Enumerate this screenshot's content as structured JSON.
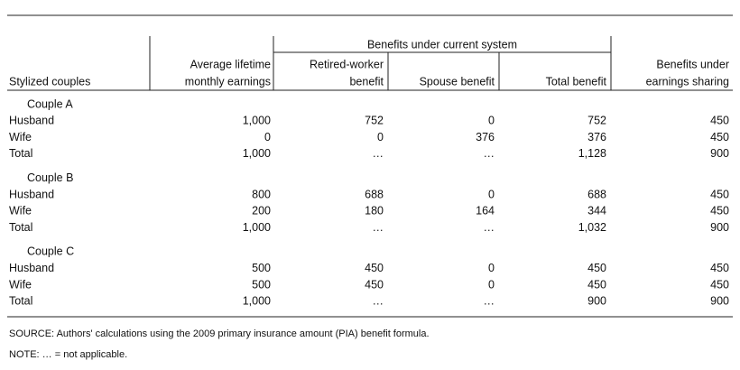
{
  "table": {
    "group_header": "Benefits under current system",
    "columns": [
      [
        "Stylized couples"
      ],
      [
        "Average lifetime",
        "monthly earnings"
      ],
      [
        "Retired-worker",
        "benefit"
      ],
      [
        "Spouse benefit"
      ],
      [
        "Total benefit"
      ],
      [
        "Benefits under",
        "earnings sharing"
      ]
    ],
    "groups": [
      {
        "label": "Couple A",
        "rows": [
          [
            "Husband",
            "1,000",
            "752",
            "0",
            "752",
            "450"
          ],
          [
            "Wife",
            "0",
            "0",
            "376",
            "376",
            "450"
          ],
          [
            "Total",
            "1,000",
            "…",
            "…",
            "1,128",
            "900"
          ]
        ]
      },
      {
        "label": "Couple B",
        "rows": [
          [
            "Husband",
            "800",
            "688",
            "0",
            "688",
            "450"
          ],
          [
            "Wife",
            "200",
            "180",
            "164",
            "344",
            "450"
          ],
          [
            "Total",
            "1,000",
            "…",
            "…",
            "1,032",
            "900"
          ]
        ]
      },
      {
        "label": "Couple C",
        "rows": [
          [
            "Husband",
            "500",
            "450",
            "0",
            "450",
            "450"
          ],
          [
            "Wife",
            "500",
            "450",
            "0",
            "450",
            "450"
          ],
          [
            "Total",
            "1,000",
            "…",
            "…",
            "900",
            "900"
          ]
        ]
      }
    ],
    "footnotes": [
      "SOURCE: Authors' calculations using the 2009 primary insurance amount (PIA) benefit formula.",
      "NOTE: … = not applicable."
    ]
  }
}
